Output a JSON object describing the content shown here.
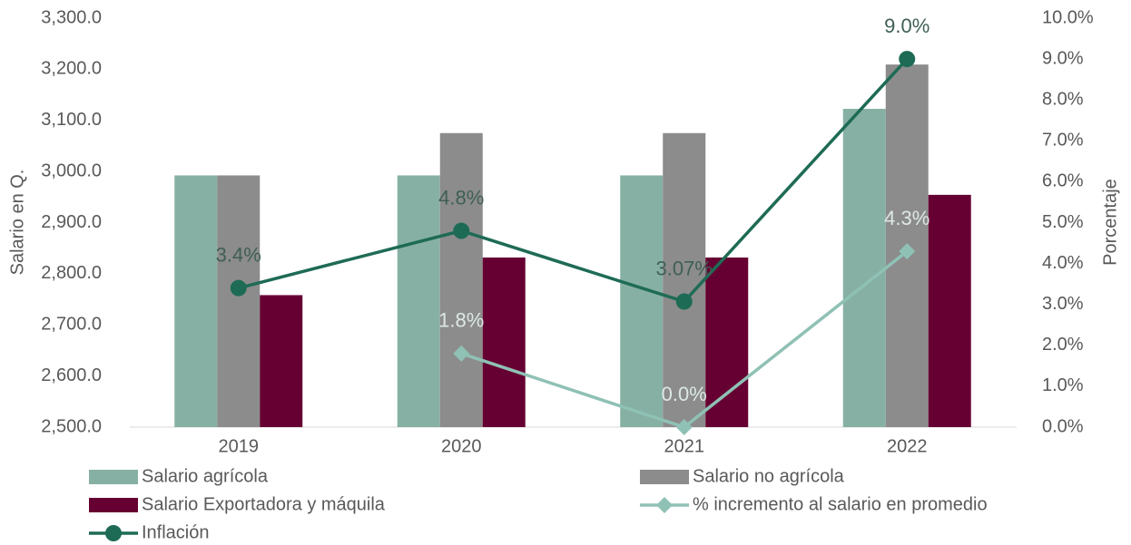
{
  "chart_data": {
    "type": "bar",
    "y_label": "Salario en Q.",
    "y2_label": "Porcentaje",
    "categories": [
      "2019",
      "2020",
      "2021",
      "2022"
    ],
    "series": [
      {
        "name": "Salario agrícola",
        "color": "#87b0a4",
        "values": [
          2992.37,
          2992.37,
          2992.37,
          3122.55
        ]
      },
      {
        "name": "Salario no agrícola",
        "color": "#8c8c8c",
        "values": [
          2992.37,
          3075.1,
          3075.1,
          3209.24
        ]
      },
      {
        "name": "Salario Exportadora y máquila",
        "color": "#660033",
        "values": [
          2758.16,
          2831.77,
          2831.77,
          2954.35
        ]
      },
      {
        "name": "% incremento al salario en promedio",
        "color": "#8fc1b5",
        "type": "line",
        "marker": "diamond",
        "axis": "y2",
        "values": [
          null,
          1.8,
          0.0,
          4.3
        ],
        "value_labels": [
          null,
          "1.8%",
          "0.0%",
          "4.3%"
        ]
      },
      {
        "name": "Inflación",
        "color": "#1e6b55",
        "type": "line",
        "marker": "circle",
        "axis": "y2",
        "values": [
          3.4,
          4.8,
          3.07,
          9.0
        ],
        "value_labels": [
          "3.4%",
          "4.8%",
          "3.07%",
          "9.0%"
        ]
      }
    ],
    "ylim": [
      2500,
      3300
    ],
    "yticks": [
      {
        "value": 2500,
        "label": "2,500.0"
      },
      {
        "value": 2600,
        "label": "2,600.0"
      },
      {
        "value": 2700,
        "label": "2,700.0"
      },
      {
        "value": 2800,
        "label": "2,800.0"
      },
      {
        "value": 2900,
        "label": "2,900.0"
      },
      {
        "value": 3000,
        "label": "3,000.0"
      },
      {
        "value": 3100,
        "label": "3,100.0"
      },
      {
        "value": 3200,
        "label": "3,200.0"
      },
      {
        "value": 3300,
        "label": "3,300.0"
      }
    ],
    "y2lim": [
      0,
      10
    ],
    "y2ticks": [
      {
        "value": 0,
        "label": "0.0%"
      },
      {
        "value": 1,
        "label": "1.0%"
      },
      {
        "value": 2,
        "label": "2.0%"
      },
      {
        "value": 3,
        "label": "3.0%"
      },
      {
        "value": 4,
        "label": "4.0%"
      },
      {
        "value": 5,
        "label": "5.0%"
      },
      {
        "value": 6,
        "label": "6.0%"
      },
      {
        "value": 7,
        "label": "7.0%"
      },
      {
        "value": 8,
        "label": "8.0%"
      },
      {
        "value": 9,
        "label": "9.0%"
      },
      {
        "value": 10,
        "label": "10.0%"
      }
    ],
    "grid": false,
    "legend": "bottom"
  }
}
